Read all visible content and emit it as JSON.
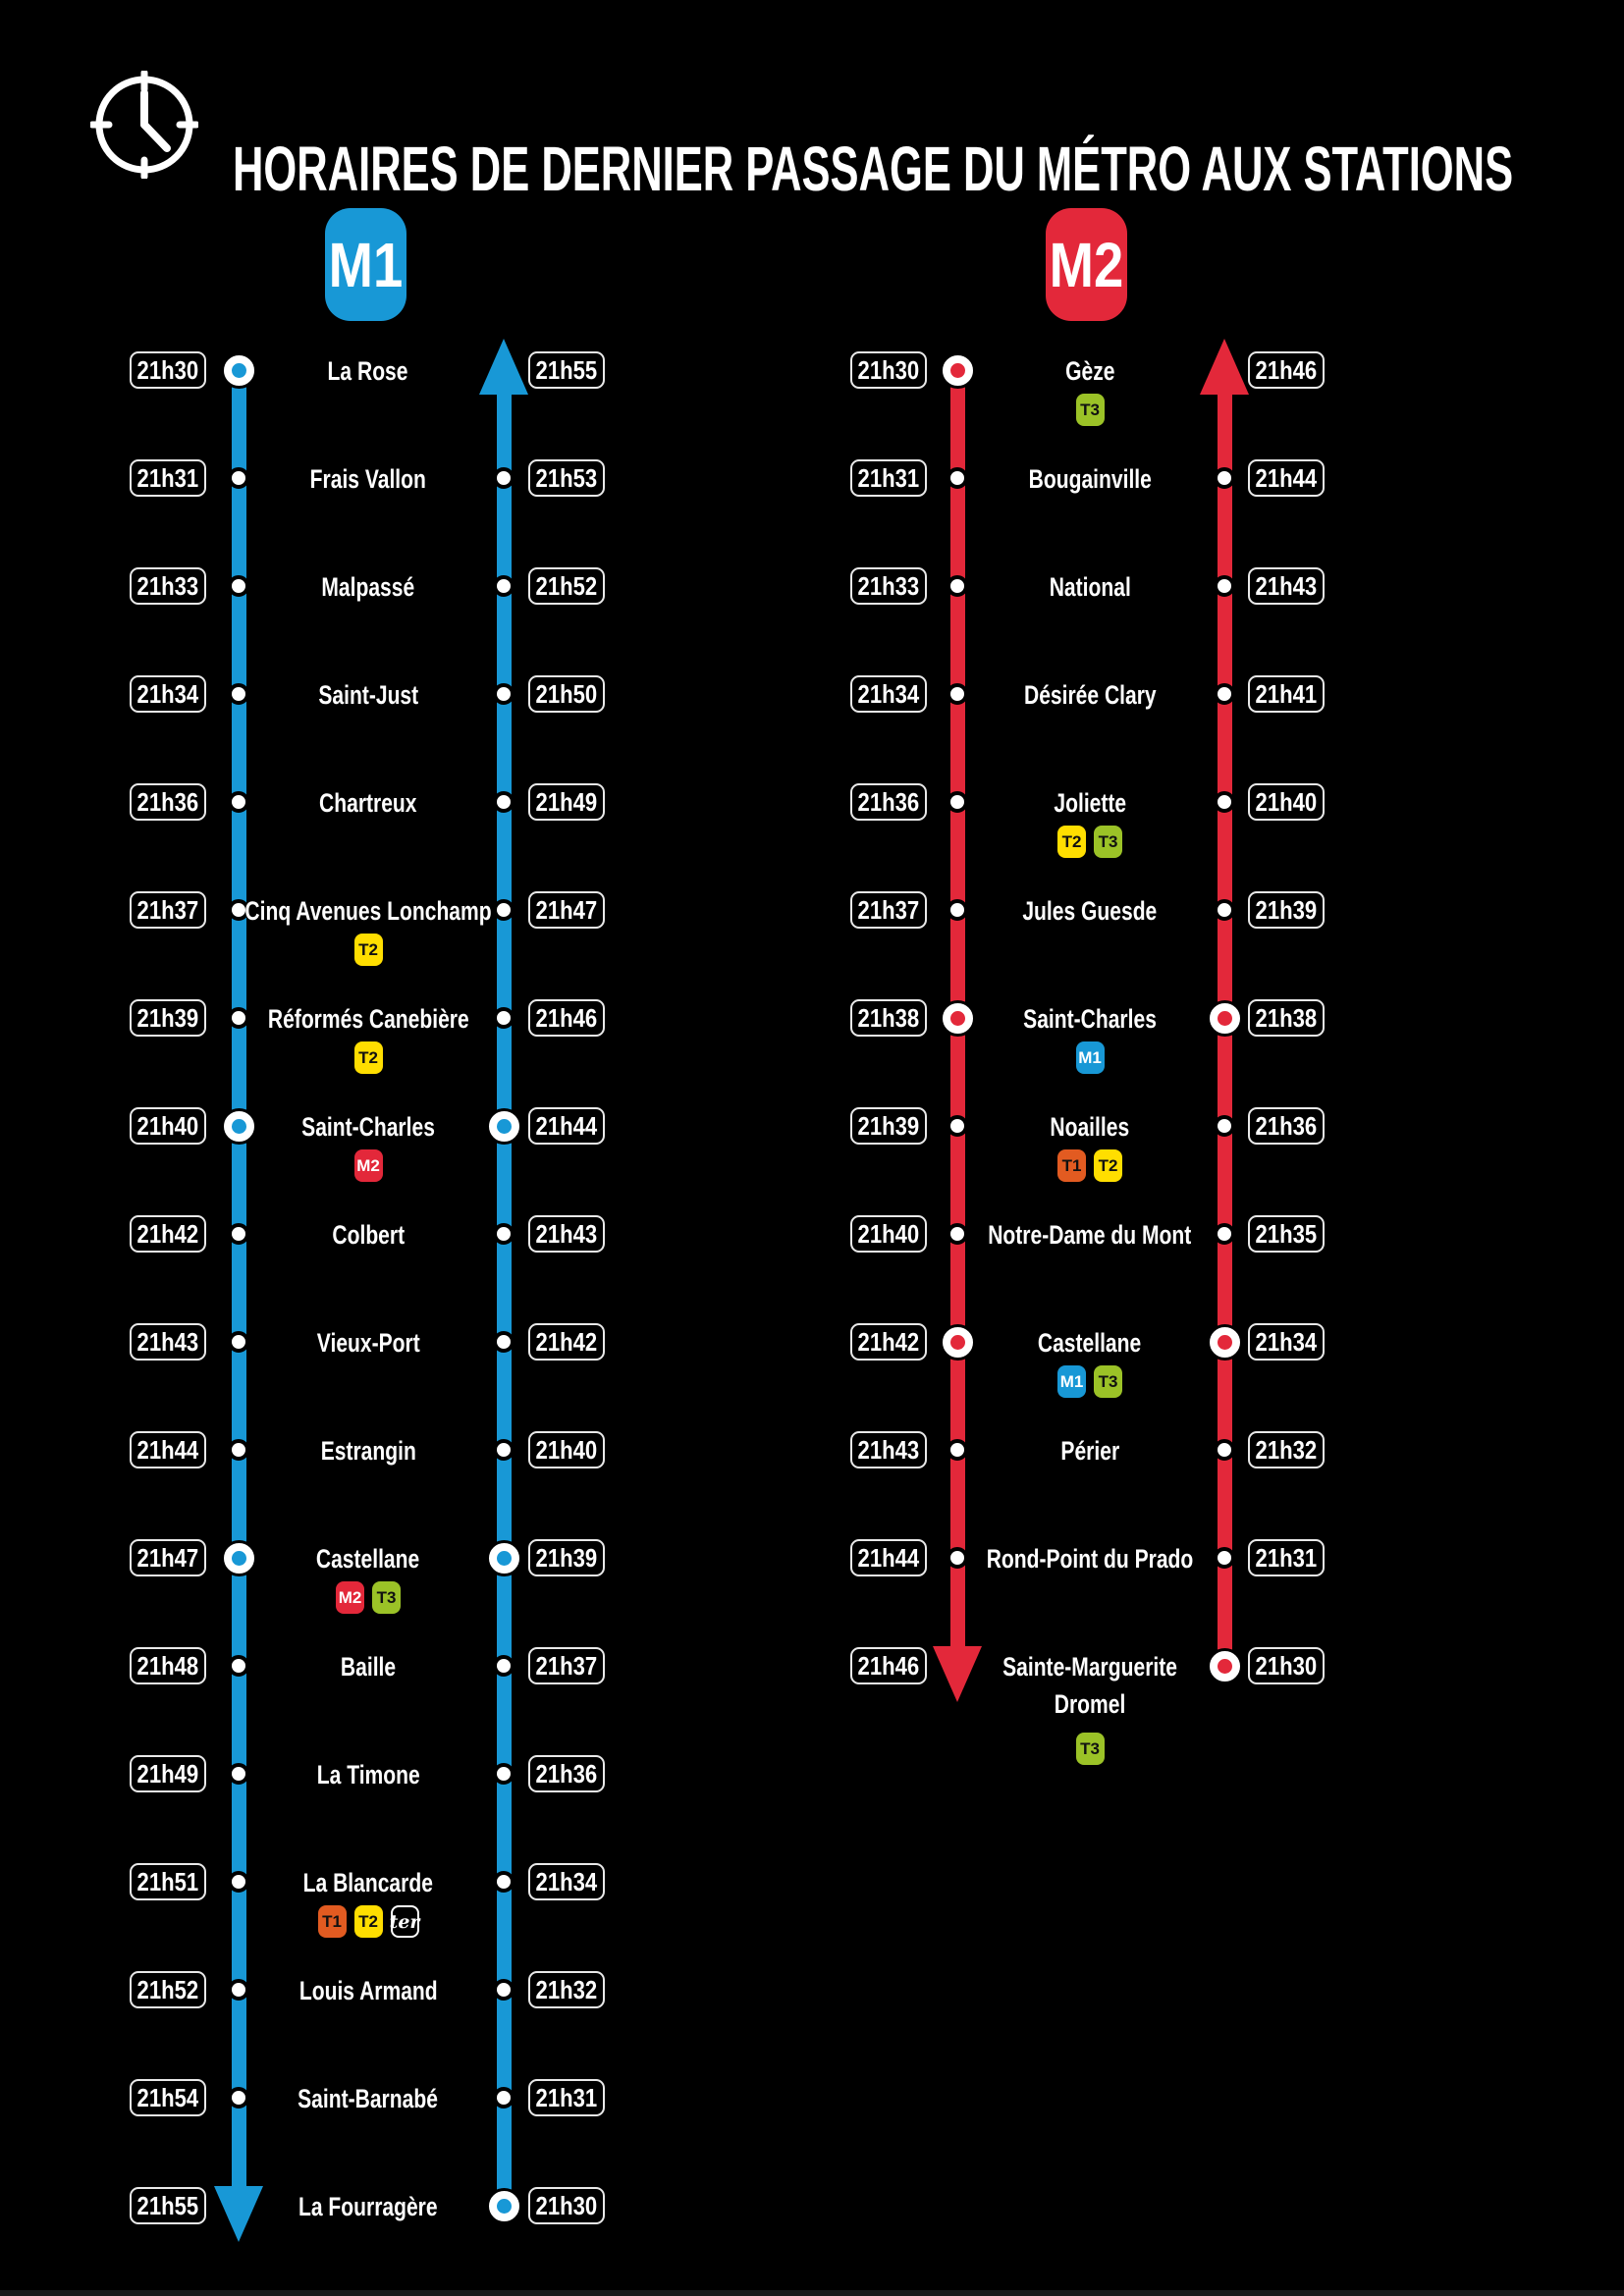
{
  "title": "HORAIRES DE DERNIER PASSAGE DU MÉTRO AUX STATIONS",
  "colors": {
    "background": "#000000",
    "text": "#FFFFFF",
    "time_box_border": "#E9E9E9",
    "dot_fill": "#FFFFFF",
    "dot_outline": "#000000",
    "m1_blue": "#1898D6",
    "m2_red": "#E3283A"
  },
  "badge_palette": {
    "M1": {
      "label": "M1",
      "bg": "#1898D6",
      "fg": "#FFFFFF"
    },
    "M2": {
      "label": "M2",
      "bg": "#E3283A",
      "fg": "#FFFFFF"
    },
    "T1": {
      "label": "T1",
      "bg": "#E25B21",
      "fg": "#111111"
    },
    "T2": {
      "label": "T2",
      "bg": "#FFDE00",
      "fg": "#111111"
    },
    "T3": {
      "label": "T3",
      "bg": "#9BC227",
      "fg": "#111111"
    },
    "ter": {
      "label": "ter",
      "bg": "#000000",
      "fg": "#FFFFFF",
      "border": "#FFFFFF"
    }
  },
  "lines": [
    {
      "badge_label": "M1",
      "color": "#1898D6",
      "stations": [
        {
          "name": "La Rose",
          "left_time": "21h30",
          "right_time": "21h55",
          "badges": [],
          "interchange": false
        },
        {
          "name": "Frais Vallon",
          "left_time": "21h31",
          "right_time": "21h53",
          "badges": [],
          "interchange": false
        },
        {
          "name": "Malpassé",
          "left_time": "21h33",
          "right_time": "21h52",
          "badges": [],
          "interchange": false
        },
        {
          "name": "Saint-Just",
          "left_time": "21h34",
          "right_time": "21h50",
          "badges": [],
          "interchange": false
        },
        {
          "name": "Chartreux",
          "left_time": "21h36",
          "right_time": "21h49",
          "badges": [],
          "interchange": false
        },
        {
          "name": "Cinq Avenues Lonchamp",
          "left_time": "21h37",
          "right_time": "21h47",
          "badges": [
            "T2"
          ],
          "interchange": false
        },
        {
          "name": "Réformés Canebière",
          "left_time": "21h39",
          "right_time": "21h46",
          "badges": [
            "T2"
          ],
          "interchange": false
        },
        {
          "name": "Saint-Charles",
          "left_time": "21h40",
          "right_time": "21h44",
          "badges": [
            "M2"
          ],
          "interchange": true
        },
        {
          "name": "Colbert",
          "left_time": "21h42",
          "right_time": "21h43",
          "badges": [],
          "interchange": false
        },
        {
          "name": "Vieux-Port",
          "left_time": "21h43",
          "right_time": "21h42",
          "badges": [],
          "interchange": false
        },
        {
          "name": "Estrangin",
          "left_time": "21h44",
          "right_time": "21h40",
          "badges": [],
          "interchange": false
        },
        {
          "name": "Castellane",
          "left_time": "21h47",
          "right_time": "21h39",
          "badges": [
            "M2",
            "T3"
          ],
          "interchange": true
        },
        {
          "name": "Baille",
          "left_time": "21h48",
          "right_time": "21h37",
          "badges": [],
          "interchange": false
        },
        {
          "name": "La Timone",
          "left_time": "21h49",
          "right_time": "21h36",
          "badges": [],
          "interchange": false
        },
        {
          "name": "La Blancarde",
          "left_time": "21h51",
          "right_time": "21h34",
          "badges": [
            "T1",
            "T2",
            "ter"
          ],
          "interchange": false
        },
        {
          "name": "Louis Armand",
          "left_time": "21h52",
          "right_time": "21h32",
          "badges": [],
          "interchange": false
        },
        {
          "name": "Saint-Barnabé",
          "left_time": "21h54",
          "right_time": "21h31",
          "badges": [],
          "interchange": false
        },
        {
          "name": "La Fourragère",
          "left_time": "21h55",
          "right_time": "21h30",
          "badges": [],
          "interchange": false
        }
      ]
    },
    {
      "badge_label": "M2",
      "color": "#E3283A",
      "stations": [
        {
          "name": "Gèze",
          "left_time": "21h30",
          "right_time": "21h46",
          "badges": [
            "T3"
          ],
          "interchange": false
        },
        {
          "name": "Bougainville",
          "left_time": "21h31",
          "right_time": "21h44",
          "badges": [],
          "interchange": false
        },
        {
          "name": "National",
          "left_time": "21h33",
          "right_time": "21h43",
          "badges": [],
          "interchange": false
        },
        {
          "name": "Désirée Clary",
          "left_time": "21h34",
          "right_time": "21h41",
          "badges": [],
          "interchange": false
        },
        {
          "name": "Joliette",
          "left_time": "21h36",
          "right_time": "21h40",
          "badges": [
            "T2",
            "T3"
          ],
          "interchange": false
        },
        {
          "name": "Jules Guesde",
          "left_time": "21h37",
          "right_time": "21h39",
          "badges": [],
          "interchange": false
        },
        {
          "name": "Saint-Charles",
          "left_time": "21h38",
          "right_time": "21h38",
          "badges": [
            "M1"
          ],
          "interchange": true
        },
        {
          "name": "Noailles",
          "left_time": "21h39",
          "right_time": "21h36",
          "badges": [
            "T1",
            "T2"
          ],
          "interchange": false
        },
        {
          "name": "Notre-Dame du Mont",
          "left_time": "21h40",
          "right_time": "21h35",
          "badges": [],
          "interchange": false
        },
        {
          "name": "Castellane",
          "left_time": "21h42",
          "right_time": "21h34",
          "badges": [
            "M1",
            "T3"
          ],
          "interchange": true
        },
        {
          "name": "Périer",
          "left_time": "21h43",
          "right_time": "21h32",
          "badges": [],
          "interchange": false
        },
        {
          "name": "Rond-Point du Prado",
          "left_time": "21h44",
          "right_time": "21h31",
          "badges": [],
          "interchange": false
        },
        {
          "name": "Sainte-Marguerite\nDromel",
          "left_time": "21h46",
          "right_time": "21h30",
          "badges": [
            "T3"
          ],
          "interchange": false
        }
      ]
    }
  ]
}
